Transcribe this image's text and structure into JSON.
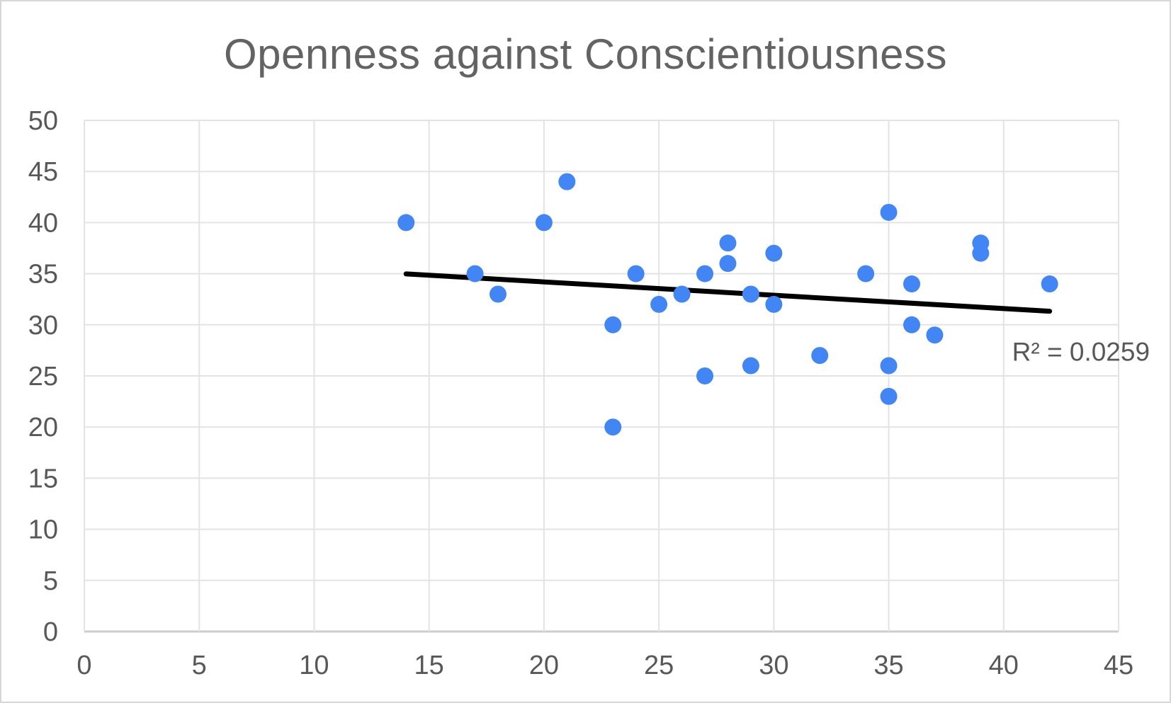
{
  "chart_data": {
    "type": "scatter",
    "title": "Openness against Conscientiousness",
    "xlabel": "",
    "ylabel": "",
    "xlim": [
      0,
      45
    ],
    "ylim": [
      0,
      50
    ],
    "x_ticks": [
      0,
      5,
      10,
      15,
      20,
      25,
      30,
      35,
      40,
      45
    ],
    "y_ticks": [
      0,
      5,
      10,
      15,
      20,
      25,
      30,
      35,
      40,
      45,
      50
    ],
    "grid": true,
    "legend": "none",
    "points": [
      [
        14,
        40
      ],
      [
        17,
        35
      ],
      [
        18,
        33
      ],
      [
        20,
        40
      ],
      [
        21,
        44
      ],
      [
        23,
        30
      ],
      [
        23,
        20
      ],
      [
        24,
        35
      ],
      [
        25,
        32
      ],
      [
        26,
        33
      ],
      [
        27,
        35
      ],
      [
        27,
        25
      ],
      [
        28,
        38
      ],
      [
        28,
        36
      ],
      [
        29,
        33
      ],
      [
        29,
        26
      ],
      [
        30,
        37
      ],
      [
        30,
        32
      ],
      [
        32,
        27
      ],
      [
        34,
        35
      ],
      [
        35,
        41
      ],
      [
        35,
        26
      ],
      [
        35,
        23
      ],
      [
        36,
        34
      ],
      [
        36,
        30
      ],
      [
        37,
        29
      ],
      [
        39,
        38
      ],
      [
        39,
        37
      ],
      [
        42,
        34
      ]
    ],
    "trendline": {
      "x1": 14,
      "y1": 34.98,
      "x2": 42,
      "y2": 31.33,
      "label": "R² = 0.0259"
    },
    "colors": {
      "point": "#4285f4",
      "trend": "#000000",
      "title_text": "#636363",
      "tick_text": "#585858",
      "grid": "#e3e3e3",
      "axis": "#cccccc",
      "background": "#ffffff",
      "border": "#d7d7d7"
    }
  }
}
